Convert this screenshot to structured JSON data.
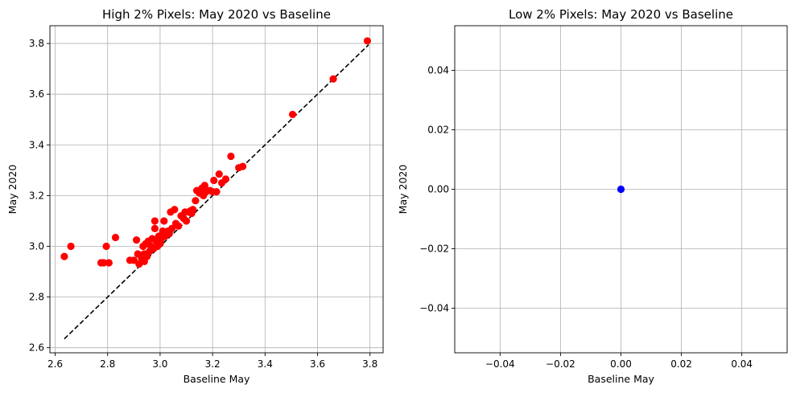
{
  "chart_data": [
    {
      "type": "scatter",
      "title": "High 2% Pixels: May 2020 vs Baseline",
      "xlabel": "Baseline May",
      "ylabel": "May 2020",
      "xlim": [
        2.58,
        3.85
      ],
      "ylim": [
        2.58,
        3.87
      ],
      "xticks": [
        2.6,
        2.8,
        3.0,
        3.2,
        3.4,
        3.6,
        3.8
      ],
      "yticks": [
        2.6,
        2.8,
        3.0,
        3.2,
        3.4,
        3.6,
        3.8
      ],
      "xtick_labels": [
        "2.6",
        "2.8",
        "3.0",
        "3.2",
        "3.4",
        "3.6",
        "3.8"
      ],
      "ytick_labels": [
        "2.6",
        "2.8",
        "3.0",
        "3.2",
        "3.4",
        "3.6",
        "3.8"
      ],
      "grid": true,
      "point_color": "#ff0000",
      "reference_line": {
        "x": [
          2.635,
          3.795
        ],
        "y": [
          2.635,
          3.795
        ],
        "style": "dashed",
        "color": "#000000"
      },
      "points": [
        [
          2.635,
          2.96
        ],
        [
          2.66,
          3.0
        ],
        [
          2.775,
          2.935
        ],
        [
          2.785,
          2.935
        ],
        [
          2.795,
          3.0
        ],
        [
          2.805,
          2.935
        ],
        [
          2.83,
          3.035
        ],
        [
          2.885,
          2.945
        ],
        [
          2.9,
          2.945
        ],
        [
          2.91,
          3.025
        ],
        [
          2.915,
          2.97
        ],
        [
          2.92,
          2.93
        ],
        [
          2.925,
          2.965
        ],
        [
          2.93,
          2.95
        ],
        [
          2.935,
          3.0
        ],
        [
          2.94,
          2.97
        ],
        [
          2.94,
          2.94
        ],
        [
          2.945,
          3.01
        ],
        [
          2.95,
          2.96
        ],
        [
          2.955,
          3.02
        ],
        [
          2.96,
          2.98
        ],
        [
          2.965,
          3.0
        ],
        [
          2.97,
          3.03
        ],
        [
          2.975,
          2.99
        ],
        [
          2.98,
          3.07
        ],
        [
          2.98,
          3.1
        ],
        [
          2.985,
          3.02
        ],
        [
          2.99,
          3.0
        ],
        [
          2.995,
          3.04
        ],
        [
          3.0,
          3.01
        ],
        [
          3.005,
          3.03
        ],
        [
          3.01,
          3.06
        ],
        [
          3.015,
          3.1
        ],
        [
          3.02,
          3.04
        ],
        [
          3.03,
          3.06
        ],
        [
          3.035,
          3.05
        ],
        [
          3.04,
          3.135
        ],
        [
          3.045,
          3.07
        ],
        [
          3.055,
          3.145
        ],
        [
          3.06,
          3.09
        ],
        [
          3.07,
          3.08
        ],
        [
          3.08,
          3.12
        ],
        [
          3.09,
          3.11
        ],
        [
          3.095,
          3.135
        ],
        [
          3.1,
          3.1
        ],
        [
          3.11,
          3.135
        ],
        [
          3.115,
          3.14
        ],
        [
          3.12,
          3.13
        ],
        [
          3.125,
          3.145
        ],
        [
          3.135,
          3.18
        ],
        [
          3.14,
          3.22
        ],
        [
          3.15,
          3.21
        ],
        [
          3.155,
          3.22
        ],
        [
          3.16,
          3.23
        ],
        [
          3.165,
          3.2
        ],
        [
          3.17,
          3.24
        ],
        [
          3.175,
          3.215
        ],
        [
          3.18,
          3.22
        ],
        [
          3.19,
          3.22
        ],
        [
          3.2,
          3.215
        ],
        [
          3.205,
          3.26
        ],
        [
          3.215,
          3.215
        ],
        [
          3.225,
          3.285
        ],
        [
          3.235,
          3.25
        ],
        [
          3.25,
          3.265
        ],
        [
          3.27,
          3.355
        ],
        [
          3.3,
          3.31
        ],
        [
          3.315,
          3.315
        ],
        [
          3.505,
          3.52
        ],
        [
          3.66,
          3.66
        ],
        [
          3.79,
          3.81
        ]
      ]
    },
    {
      "type": "scatter",
      "title": "Low 2% Pixels: May 2020 vs Baseline",
      "xlabel": "Baseline May",
      "ylabel": "May 2020",
      "xlim": [
        -0.055,
        0.055
      ],
      "ylim": [
        -0.055,
        0.055
      ],
      "xticks": [
        -0.04,
        -0.02,
        0.0,
        0.02,
        0.04
      ],
      "yticks": [
        -0.04,
        -0.02,
        0.0,
        0.02,
        0.04
      ],
      "xtick_labels": [
        "−0.04",
        "−0.02",
        "0.00",
        "0.02",
        "0.04"
      ],
      "ytick_labels": [
        "−0.04",
        "−0.02",
        "0.00",
        "0.02",
        "0.04"
      ],
      "grid": true,
      "point_color": "#0000ff",
      "points": [
        [
          0.0,
          0.0
        ]
      ]
    }
  ]
}
